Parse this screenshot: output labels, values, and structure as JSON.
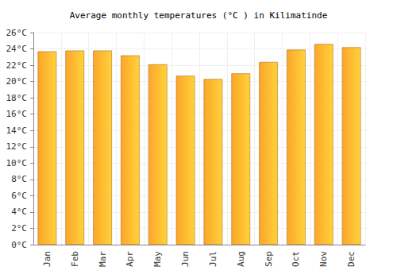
{
  "chart_data": {
    "type": "bar",
    "title": "Average monthly temperatures (°C ) in Kilimatinde",
    "categories": [
      "Jan",
      "Feb",
      "Mar",
      "Apr",
      "May",
      "Jun",
      "Jul",
      "Aug",
      "Sep",
      "Oct",
      "Nov",
      "Dec"
    ],
    "values": [
      23.7,
      23.8,
      23.8,
      23.2,
      22.1,
      20.7,
      20.3,
      21.0,
      22.4,
      23.9,
      24.6,
      24.2
    ],
    "color": "#fca62a",
    "ylim": [
      0,
      26
    ],
    "yticks": [
      {
        "value": 0,
        "label": "0°C"
      },
      {
        "value": 2,
        "label": "2°C"
      },
      {
        "value": 4,
        "label": "4°C"
      },
      {
        "value": 6,
        "label": "6°C"
      },
      {
        "value": 8,
        "label": "8°C"
      },
      {
        "value": 10,
        "label": "10°C"
      },
      {
        "value": 12,
        "label": "12°C"
      },
      {
        "value": 14,
        "label": "14°C"
      },
      {
        "value": 16,
        "label": "16°C"
      },
      {
        "value": 18,
        "label": "18°C"
      },
      {
        "value": 20,
        "label": "20°C"
      },
      {
        "value": 22,
        "label": "22°C"
      },
      {
        "value": 24,
        "label": "24°C"
      },
      {
        "value": 26,
        "label": "26°C"
      }
    ],
    "grid": true
  }
}
